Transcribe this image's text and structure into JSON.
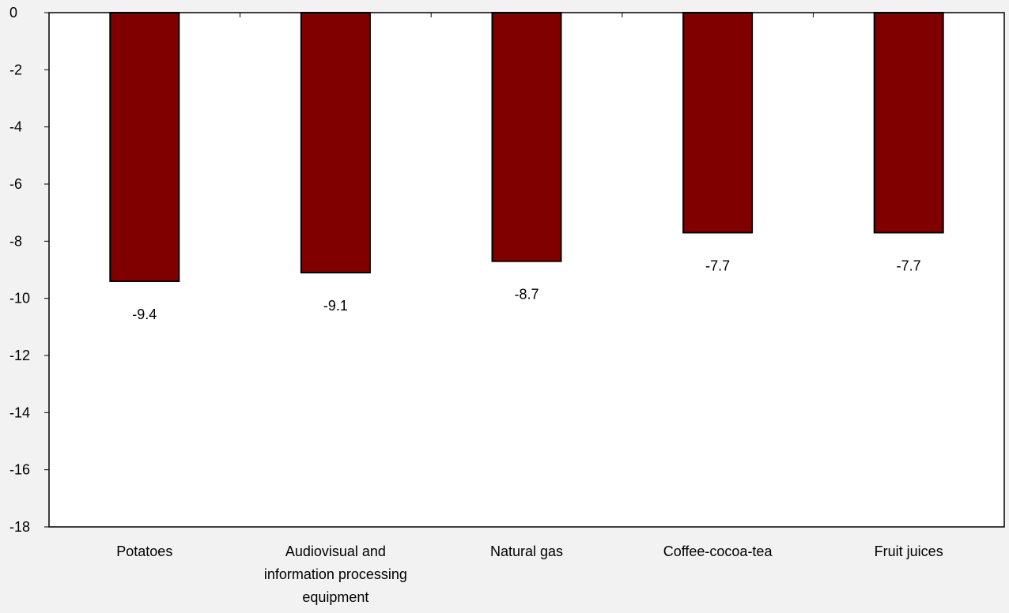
{
  "chart_data": {
    "type": "bar",
    "title": "",
    "xlabel": "",
    "ylabel": "",
    "categories": [
      [
        "Potatoes"
      ],
      [
        "Audiovisual and",
        "information processing",
        "equipment"
      ],
      [
        "Natural gas"
      ],
      [
        "Coffee-cocoa-tea"
      ],
      [
        "Fruit juices"
      ]
    ],
    "values": [
      -9.4,
      -9.1,
      -8.7,
      -7.7,
      -7.7
    ],
    "data_labels": [
      "-9.4",
      "-9.1",
      "-8.7",
      "-7.7",
      "-7.7"
    ],
    "ylim": [
      -18,
      0
    ],
    "yticks": [
      0,
      -2,
      -4,
      -6,
      -8,
      -10,
      -12,
      -14,
      -16,
      -18
    ],
    "grid": false,
    "legend": "none"
  },
  "colors": {
    "bar_fill": "#800000",
    "bar_stroke": "#000000",
    "plot_background": "#ffffff",
    "page_background": "#f2f2f2",
    "axis": "#000000"
  }
}
